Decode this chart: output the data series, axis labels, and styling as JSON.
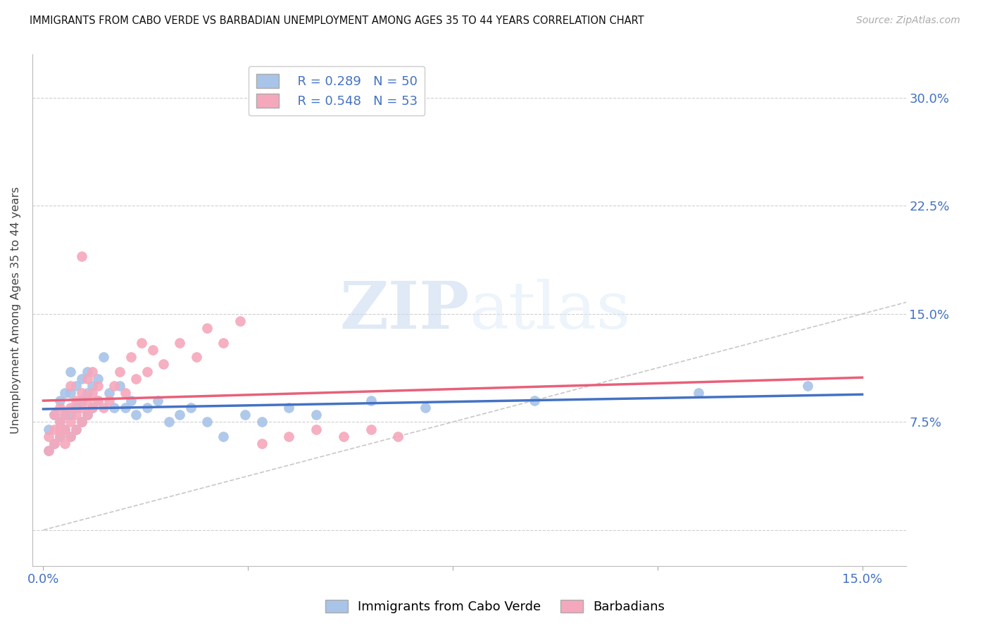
{
  "title": "IMMIGRANTS FROM CABO VERDE VS BARBADIAN UNEMPLOYMENT AMONG AGES 35 TO 44 YEARS CORRELATION CHART",
  "source": "Source: ZipAtlas.com",
  "ylabel": "Unemployment Among Ages 35 to 44 years",
  "yticks": [
    0.0,
    0.075,
    0.15,
    0.225,
    0.3
  ],
  "ytick_labels": [
    "",
    "7.5%",
    "15.0%",
    "22.5%",
    "30.0%"
  ],
  "xticks": [
    0.0,
    0.0375,
    0.075,
    0.1125,
    0.15
  ],
  "xlim": [
    -0.002,
    0.158
  ],
  "ylim": [
    -0.025,
    0.33
  ],
  "legend1_label": "R = 0.289   N = 50",
  "legend2_label": "R = 0.548   N = 53",
  "cabo_verde_color": "#a8c4e8",
  "barbadian_color": "#f5a8bc",
  "cabo_verde_line_color": "#4472c4",
  "barbadian_line_color": "#e8607a",
  "diagonal_color": "#c8c8c8",
  "background_color": "#ffffff",
  "watermark_zip": "ZIP",
  "watermark_atlas": "atlas",
  "cabo_verde_x": [
    0.001,
    0.001,
    0.002,
    0.002,
    0.003,
    0.003,
    0.003,
    0.004,
    0.004,
    0.004,
    0.005,
    0.005,
    0.005,
    0.005,
    0.006,
    0.006,
    0.006,
    0.007,
    0.007,
    0.007,
    0.008,
    0.008,
    0.008,
    0.009,
    0.009,
    0.01,
    0.01,
    0.011,
    0.012,
    0.013,
    0.014,
    0.015,
    0.016,
    0.017,
    0.019,
    0.021,
    0.023,
    0.025,
    0.027,
    0.03,
    0.033,
    0.037,
    0.04,
    0.045,
    0.05,
    0.06,
    0.07,
    0.09,
    0.12,
    0.14
  ],
  "cabo_verde_y": [
    0.055,
    0.07,
    0.06,
    0.08,
    0.065,
    0.075,
    0.09,
    0.07,
    0.08,
    0.095,
    0.065,
    0.08,
    0.095,
    0.11,
    0.07,
    0.085,
    0.1,
    0.075,
    0.09,
    0.105,
    0.08,
    0.095,
    0.11,
    0.085,
    0.1,
    0.09,
    0.105,
    0.12,
    0.095,
    0.085,
    0.1,
    0.085,
    0.09,
    0.08,
    0.085,
    0.09,
    0.075,
    0.08,
    0.085,
    0.075,
    0.065,
    0.08,
    0.075,
    0.085,
    0.08,
    0.09,
    0.085,
    0.09,
    0.095,
    0.1
  ],
  "barbadian_x": [
    0.001,
    0.001,
    0.002,
    0.002,
    0.002,
    0.003,
    0.003,
    0.003,
    0.003,
    0.004,
    0.004,
    0.004,
    0.005,
    0.005,
    0.005,
    0.005,
    0.006,
    0.006,
    0.006,
    0.007,
    0.007,
    0.007,
    0.007,
    0.008,
    0.008,
    0.008,
    0.009,
    0.009,
    0.009,
    0.01,
    0.01,
    0.011,
    0.012,
    0.013,
    0.014,
    0.015,
    0.016,
    0.017,
    0.018,
    0.019,
    0.02,
    0.022,
    0.025,
    0.028,
    0.03,
    0.033,
    0.036,
    0.04,
    0.045,
    0.05,
    0.055,
    0.06,
    0.065
  ],
  "barbadian_y": [
    0.055,
    0.065,
    0.06,
    0.07,
    0.08,
    0.065,
    0.07,
    0.075,
    0.085,
    0.06,
    0.07,
    0.08,
    0.065,
    0.075,
    0.085,
    0.1,
    0.07,
    0.08,
    0.09,
    0.075,
    0.085,
    0.095,
    0.19,
    0.08,
    0.09,
    0.105,
    0.085,
    0.095,
    0.11,
    0.09,
    0.1,
    0.085,
    0.09,
    0.1,
    0.11,
    0.095,
    0.12,
    0.105,
    0.13,
    0.11,
    0.125,
    0.115,
    0.13,
    0.12,
    0.14,
    0.13,
    0.145,
    0.06,
    0.065,
    0.07,
    0.065,
    0.07,
    0.065
  ],
  "cabo_verde_R": 0.289,
  "cabo_verde_N": 50,
  "barbadian_R": 0.548,
  "barbadian_N": 53
}
